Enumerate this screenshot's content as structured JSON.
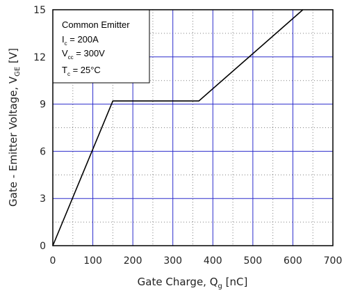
{
  "chart_data": {
    "type": "line",
    "xlabel": {
      "main": "Gate Charge, Q",
      "sub": "g",
      "unit": " [nC]"
    },
    "ylabel": {
      "main": "Gate - Emitter Voltage, V",
      "sub": "GE",
      "unit": " [V]"
    },
    "xlim": [
      0,
      700
    ],
    "ylim": [
      0,
      15
    ],
    "x_ticks": [
      "0",
      "100",
      "200",
      "300",
      "400",
      "500",
      "600",
      "700"
    ],
    "y_ticks": [
      "0",
      "3",
      "6",
      "9",
      "12",
      "15"
    ],
    "major_grid_x": [
      100,
      200,
      300,
      400,
      500,
      600
    ],
    "major_grid_y": [
      3,
      6,
      9,
      12
    ],
    "minor_grid_x": [
      50,
      150,
      250,
      350,
      450,
      550,
      650
    ],
    "minor_grid_y": [
      1.5,
      4.5,
      7.5,
      10.5,
      13.5
    ],
    "grid_color": "#2b2bcc",
    "line_color": "#000000",
    "series": [
      {
        "x": [
          0,
          150,
          365,
          625
        ],
        "y": [
          0,
          9.2,
          9.2,
          15
        ]
      }
    ],
    "annotation": {
      "lines": [
        {
          "main": "Common Emitter",
          "sub": "",
          "rest": ""
        },
        {
          "main": "I",
          "sub": "c",
          "rest": " = 200A"
        },
        {
          "main": "V",
          "sub": "cc",
          "rest": " = 300V"
        },
        {
          "main": "T",
          "sub": "c",
          "rest": " = 25°C"
        }
      ],
      "placement": "top-left"
    }
  }
}
